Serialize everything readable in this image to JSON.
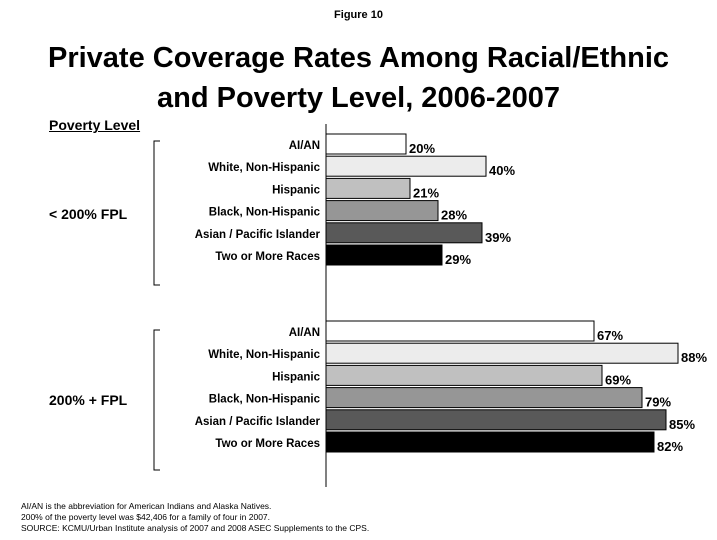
{
  "figure_label": "Figure 10",
  "title_lines": [
    "Private Coverage Rates Among Racial/Ethnic",
    "and Poverty Level, 2006-2007"
  ],
  "poverty_header": "Poverty Level",
  "colors": {
    "AI/AN": "#ffffff",
    "White, Non-Hispanic": "#ececec",
    "Hispanic": "#c0c0c0",
    "Black, Non-Hispanic": "#969696",
    "Asian / Pacific Islander": "#595959",
    "Two or More Races": "#000000"
  },
  "chart_data": {
    "type": "bar",
    "orientation": "horizontal",
    "categories": [
      "AI/AN",
      "White, Non-Hispanic",
      "Hispanic",
      "Black, Non-Hispanic",
      "Asian / Pacific Islander",
      "Two or More Races"
    ],
    "series": [
      {
        "name": "< 200% FPL",
        "values": [
          20,
          40,
          21,
          28,
          39,
          29
        ]
      },
      {
        "name": "200% + FPL",
        "values": [
          67,
          88,
          69,
          79,
          85,
          82
        ]
      }
    ],
    "value_suffix": "%",
    "xlim": [
      0,
      100
    ],
    "grid": false,
    "legend": "none"
  },
  "footnotes": [
    "AI/AN is the abbreviation for American Indians and Alaska Natives.",
    "200% of the poverty level was $42,406 for a family of four in 2007.",
    "SOURCE: KCMU/Urban Institute analysis of 2007 and 2008 ASEC Supplements to the CPS."
  ]
}
